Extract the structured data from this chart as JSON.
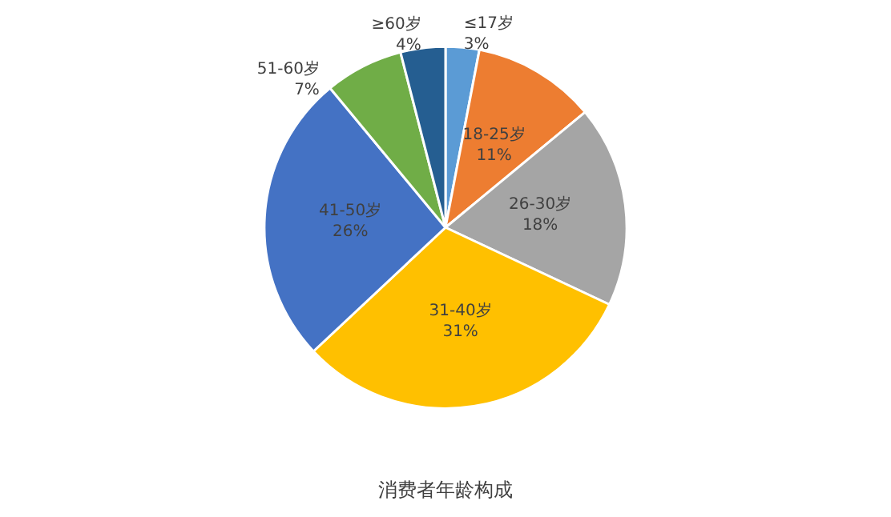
{
  "chart_data": {
    "type": "pie",
    "title": "消费者年龄构成",
    "categories": [
      "≤17岁",
      "18-25岁",
      "26-30岁",
      "31-40岁",
      "41-50岁",
      "51-60岁",
      "≥60岁"
    ],
    "values": [
      3,
      11,
      18,
      31,
      26,
      7,
      4
    ],
    "value_labels": [
      "3%",
      "11%",
      "18%",
      "31%",
      "26%",
      "7%",
      "4%"
    ],
    "colors": [
      "#5b9bd5",
      "#ed7d31",
      "#a5a5a5",
      "#ffc000",
      "#4472c4",
      "#70ad47",
      "#255e91"
    ],
    "legend": false
  }
}
